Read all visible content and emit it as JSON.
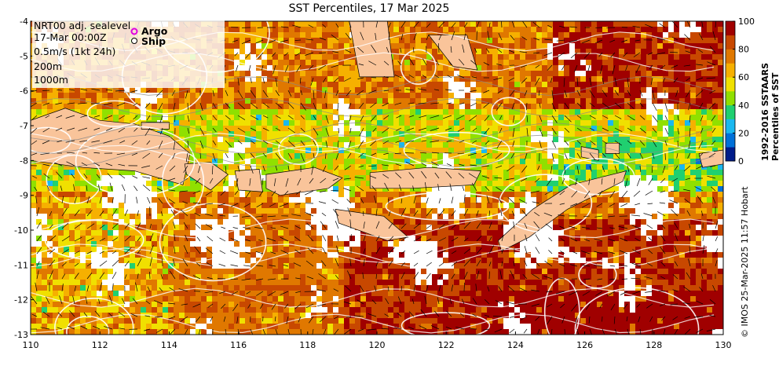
{
  "map": {
    "title": "SST Percentiles, 17 Mar 2025",
    "lon_range": [
      110,
      130
    ],
    "lat_range": [
      -13,
      -4
    ],
    "x_ticks": [
      "110",
      "112",
      "114",
      "116",
      "118",
      "120",
      "122",
      "124",
      "126",
      "128",
      "130"
    ],
    "y_ticks": [
      "-4",
      "-5",
      "-6",
      "-7",
      "-8",
      "-9",
      "-10",
      "-11",
      "-12",
      "-13"
    ],
    "legend_lines": [
      "NRT00 adj. sealevel",
      "17-Mar 00:00Z",
      "0.5m/s (1kt 24h)",
      "200m",
      "1000m"
    ],
    "markers": {
      "argo": "Argo",
      "ship": "Ship"
    },
    "land_color": "#f9c49a",
    "colorbar": {
      "title_line1": "1992-2016 SSTAARS",
      "title_line2": "Percentiles of SST",
      "ticks": [
        "100",
        "80",
        "60",
        "40",
        "20",
        "0"
      ],
      "colors": [
        "#001b8a",
        "#0070d8",
        "#1ab8f0",
        "#20d070",
        "#90e000",
        "#f0e000",
        "#f6b000",
        "#e07800",
        "#c84800",
        "#a00000"
      ]
    },
    "credit": "© IMOS 25-Mar-2025 11:57 Hobart"
  }
}
